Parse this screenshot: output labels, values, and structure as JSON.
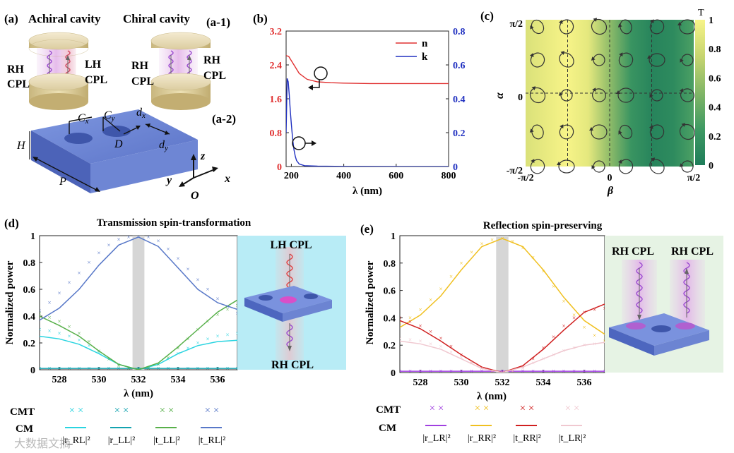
{
  "panel_labels": {
    "a": "(a)",
    "a1": "(a-1)",
    "a2": "(a-2)",
    "b": "(b)",
    "c": "(c)",
    "d": "(d)",
    "e": "(e)"
  },
  "panel_a": {
    "achiral_label": "Achiral cavity",
    "chiral_label": "Chiral cavity",
    "rh_line1": "RH",
    "cpl_line2": "CPL",
    "lh_line1": "LH",
    "labels": {
      "Cx": "C",
      "Cx_sub": "x",
      "Cy": "C",
      "Cy_sub": "y",
      "dx": "d",
      "dx_sub": "x",
      "dy": "d",
      "dy_sub": "y",
      "D": "D",
      "H": "H",
      "P": "P",
      "x": "x",
      "y": "y",
      "z": "z",
      "O": "O"
    }
  },
  "colors": {
    "n_red": "#e03030",
    "k_blue": "#2030c0",
    "cyan": "#2ad4e0",
    "teal": "#14a3b0",
    "green": "#58b04a",
    "blue": "#5878c8",
    "purple": "#a040e0",
    "yellow": "#f0c020",
    "red": "#d02020",
    "pink": "#f0c8d0"
  },
  "chart_data": [
    {
      "id": "b",
      "type": "line",
      "xlabel": "λ (nm)",
      "xlim": [
        180,
        800
      ],
      "xticks": [
        "200",
        "400",
        "600",
        "800"
      ],
      "ylim_left": [
        0,
        3.2
      ],
      "yticks_left": [
        "0",
        "0.8",
        "1.6",
        "2.4",
        "3.2"
      ],
      "ylim_right": [
        0,
        0.8
      ],
      "yticks_right": [
        "0",
        "0.2",
        "0.4",
        "0.6",
        "0.8"
      ],
      "legend": [
        "n",
        "k"
      ],
      "series": [
        {
          "name": "n",
          "axis": "left",
          "x": [
            180,
            190,
            200,
            215,
            230,
            260,
            300,
            350,
            400,
            500,
            600,
            700,
            800
          ],
          "y": [
            2.62,
            2.6,
            2.5,
            2.35,
            2.2,
            2.06,
            2.0,
            1.98,
            1.97,
            1.96,
            1.96,
            1.96,
            1.96
          ]
        },
        {
          "name": "k",
          "axis": "right",
          "x": [
            180,
            184,
            188,
            192,
            196,
            200,
            205,
            210,
            215,
            220,
            230,
            250,
            300,
            400,
            600,
            800
          ],
          "y": [
            0.2,
            0.52,
            0.5,
            0.42,
            0.33,
            0.25,
            0.16,
            0.1,
            0.06,
            0.035,
            0.015,
            0.005,
            0.002,
            0.001,
            0.0,
            0.0
          ]
        }
      ]
    },
    {
      "id": "c",
      "type": "heatmap",
      "colorbar_title": "T",
      "colorbar_ticks": [
        "0",
        "0.2",
        "0.4",
        "0.6",
        "0.8",
        "1"
      ],
      "xlabel": "β",
      "ylabel": "α",
      "xticks": [
        "-π/2",
        "0",
        "π/2"
      ],
      "yticks": [
        "-π/2",
        "0",
        "π/2"
      ],
      "T_profile": {
        "beta": [
          -1.5708,
          -1.2,
          -0.8,
          -0.4,
          0.0,
          0.4,
          0.8,
          1.2,
          1.5708
        ],
        "T": [
          0.85,
          0.92,
          1.0,
          0.9,
          0.55,
          0.2,
          0.06,
          0.12,
          0.3
        ]
      }
    },
    {
      "id": "d",
      "type": "line",
      "title": "Transmission spin-transformation",
      "xlabel": "λ (nm)",
      "ylabel": "Normalized power",
      "xlim": [
        527,
        537
      ],
      "xticks": [
        "528",
        "530",
        "532",
        "534",
        "536"
      ],
      "ylim": [
        0,
        1
      ],
      "yticks": [
        "0",
        "0.2",
        "0.4",
        "0.6",
        "0.8",
        "1"
      ],
      "highlight_band": [
        531.7,
        532.3
      ],
      "inset_top": "LH CPL",
      "inset_bottom": "RH CPL",
      "legend": {
        "cmt_label": "CMT",
        "cm_label": "CM",
        "items": [
          "|r_RL|²",
          "|r_LL|²",
          "|t_LL|²",
          "|t_RL|²"
        ]
      },
      "series": [
        {
          "name": "|rRL|^2",
          "cm": {
            "x": [
              527,
              528,
              529,
              530,
              531,
              532,
              533,
              534,
              535,
              536,
              537
            ],
            "y": [
              0.25,
              0.23,
              0.19,
              0.12,
              0.04,
              0.0,
              0.04,
              0.12,
              0.18,
              0.21,
              0.22
            ]
          },
          "cmt": {
            "x": [
              527,
              527.5,
              528,
              528.5,
              529,
              529.5,
              530,
              530.5,
              531,
              531.5,
              532,
              532.5,
              533,
              533.5,
              534,
              534.5,
              535,
              535.5,
              536,
              536.5,
              537
            ],
            "y": [
              0.3,
              0.29,
              0.27,
              0.25,
              0.22,
              0.18,
              0.13,
              0.08,
              0.04,
              0.01,
              0.0,
              0.01,
              0.04,
              0.08,
              0.12,
              0.16,
              0.2,
              0.23,
              0.25,
              0.26,
              0.27
            ]
          }
        },
        {
          "name": "|rLL|^2",
          "cm": {
            "x": [
              527,
              537
            ],
            "y": [
              0.01,
              0.01
            ]
          },
          "cmt": {
            "x": [
              527,
              527.5,
              528,
              528.5,
              529,
              529.5,
              530,
              530.5,
              531,
              531.5,
              532,
              532.5,
              533,
              533.5,
              534,
              534.5,
              535,
              535.5,
              536,
              536.5,
              537
            ],
            "y": [
              0.01,
              0.01,
              0.01,
              0.01,
              0.01,
              0.01,
              0.01,
              0.01,
              0.01,
              0.01,
              0.01,
              0.01,
              0.01,
              0.01,
              0.01,
              0.01,
              0.01,
              0.01,
              0.01,
              0.01,
              0.01
            ]
          }
        },
        {
          "name": "|tLL|^2",
          "cm": {
            "x": [
              527,
              528,
              529,
              530,
              531,
              532,
              533,
              534,
              535,
              536,
              537
            ],
            "y": [
              0.4,
              0.33,
              0.25,
              0.14,
              0.04,
              0.0,
              0.05,
              0.17,
              0.3,
              0.43,
              0.52
            ]
          },
          "cmt": {
            "x": [
              527,
              527.5,
              528,
              528.5,
              529,
              529.5,
              530,
              530.5,
              531,
              531.5,
              532,
              532.5,
              533,
              533.5,
              534,
              534.5,
              535,
              535.5,
              536,
              536.5,
              537
            ],
            "y": [
              0.42,
              0.39,
              0.36,
              0.32,
              0.27,
              0.21,
              0.14,
              0.08,
              0.03,
              0.01,
              0.0,
              0.01,
              0.04,
              0.09,
              0.16,
              0.23,
              0.3,
              0.36,
              0.41,
              0.45,
              0.48
            ]
          }
        },
        {
          "name": "|tRL|^2",
          "cm": {
            "x": [
              527,
              528,
              529,
              530,
              531,
              532,
              533,
              534,
              535,
              536,
              537
            ],
            "y": [
              0.37,
              0.46,
              0.6,
              0.78,
              0.93,
              0.99,
              0.92,
              0.76,
              0.6,
              0.5,
              0.45
            ]
          },
          "cmt": {
            "x": [
              527,
              527.5,
              528,
              528.5,
              529,
              529.5,
              530,
              530.5,
              531,
              531.5,
              532,
              532.5,
              533,
              533.5,
              534,
              534.5,
              535,
              535.5,
              536,
              536.5,
              537
            ],
            "y": [
              0.44,
              0.5,
              0.57,
              0.65,
              0.72,
              0.8,
              0.87,
              0.93,
              0.97,
              0.99,
              1.0,
              0.99,
              0.96,
              0.9,
              0.83,
              0.75,
              0.67,
              0.6,
              0.53,
              0.47,
              0.42
            ]
          }
        }
      ]
    },
    {
      "id": "e",
      "type": "line",
      "title": "Reflection spin-preserving",
      "xlabel": "λ (nm)",
      "ylabel": "Normalized power",
      "xlim": [
        527,
        537
      ],
      "xticks": [
        "528",
        "530",
        "532",
        "534",
        "536"
      ],
      "ylim": [
        0,
        1
      ],
      "yticks": [
        "0",
        "0.2",
        "0.4",
        "0.6",
        "0.8",
        "1"
      ],
      "highlight_band": [
        531.7,
        532.3
      ],
      "inset_labels": [
        "RH CPL",
        "RH CPL"
      ],
      "legend": {
        "cmt_label": "CMT",
        "cm_label": "CM",
        "items": [
          "|r_LR|²",
          "|r_RR|²",
          "|t_RR|²",
          "|t_LR|²"
        ]
      },
      "series": [
        {
          "name": "|rLR|^2",
          "cm": {
            "x": [
              527,
              537
            ],
            "y": [
              0.01,
              0.01
            ]
          },
          "cmt": {
            "x": [
              527,
              527.5,
              528,
              528.5,
              529,
              529.5,
              530,
              530.5,
              531,
              531.5,
              532,
              532.5,
              533,
              533.5,
              534,
              534.5,
              535,
              535.5,
              536,
              536.5,
              537
            ],
            "y": [
              0.01,
              0.01,
              0.01,
              0.01,
              0.01,
              0.01,
              0.01,
              0.01,
              0.01,
              0.01,
              0.01,
              0.01,
              0.01,
              0.01,
              0.01,
              0.01,
              0.01,
              0.01,
              0.01,
              0.01,
              0.01
            ]
          }
        },
        {
          "name": "|rRR|^2",
          "cm": {
            "x": [
              527,
              528,
              529,
              530,
              531,
              532,
              533,
              534,
              535,
              536,
              537
            ],
            "y": [
              0.33,
              0.42,
              0.56,
              0.75,
              0.92,
              0.98,
              0.92,
              0.75,
              0.55,
              0.38,
              0.28
            ]
          },
          "cmt": {
            "x": [
              527,
              527.5,
              528,
              528.5,
              529,
              529.5,
              530,
              530.5,
              531,
              531.5,
              532,
              532.5,
              533,
              533.5,
              534,
              534.5,
              535,
              535.5,
              536,
              536.5,
              537
            ],
            "y": [
              0.36,
              0.4,
              0.46,
              0.53,
              0.61,
              0.7,
              0.8,
              0.88,
              0.94,
              0.97,
              0.98,
              0.96,
              0.91,
              0.84,
              0.74,
              0.63,
              0.52,
              0.42,
              0.33,
              0.27,
              0.23
            ]
          }
        },
        {
          "name": "|tRR|^2",
          "cm": {
            "x": [
              527,
              528,
              529,
              530,
              531,
              532,
              533,
              534,
              535,
              536,
              537
            ],
            "y": [
              0.38,
              0.32,
              0.23,
              0.13,
              0.04,
              0.0,
              0.05,
              0.17,
              0.31,
              0.44,
              0.5
            ]
          },
          "cmt": {
            "x": [
              527,
              527.5,
              528,
              528.5,
              529,
              529.5,
              530,
              530.5,
              531,
              531.5,
              532,
              532.5,
              533,
              533.5,
              534,
              534.5,
              535,
              535.5,
              536,
              536.5,
              537
            ],
            "y": [
              0.4,
              0.37,
              0.34,
              0.3,
              0.25,
              0.19,
              0.13,
              0.07,
              0.03,
              0.01,
              0.0,
              0.01,
              0.04,
              0.1,
              0.18,
              0.26,
              0.34,
              0.4,
              0.44,
              0.46,
              0.47
            ]
          }
        },
        {
          "name": "|tLR|^2",
          "cm": {
            "x": [
              527,
              528,
              529,
              530,
              531,
              532,
              533,
              534,
              535,
              536,
              537
            ],
            "y": [
              0.23,
              0.21,
              0.17,
              0.1,
              0.03,
              0.0,
              0.04,
              0.1,
              0.16,
              0.2,
              0.22
            ]
          },
          "cmt": {
            "x": [
              527,
              527.5,
              528,
              528.5,
              529,
              529.5,
              530,
              530.5,
              531,
              531.5,
              532,
              532.5,
              533,
              533.5,
              534,
              534.5,
              535,
              535.5,
              536,
              536.5,
              537
            ],
            "y": [
              0.25,
              0.24,
              0.23,
              0.21,
              0.19,
              0.15,
              0.11,
              0.07,
              0.03,
              0.01,
              0.0,
              0.01,
              0.03,
              0.07,
              0.1,
              0.13,
              0.16,
              0.18,
              0.2,
              0.21,
              0.22
            ]
          }
        }
      ]
    }
  ],
  "watermark": "大数据文摘"
}
